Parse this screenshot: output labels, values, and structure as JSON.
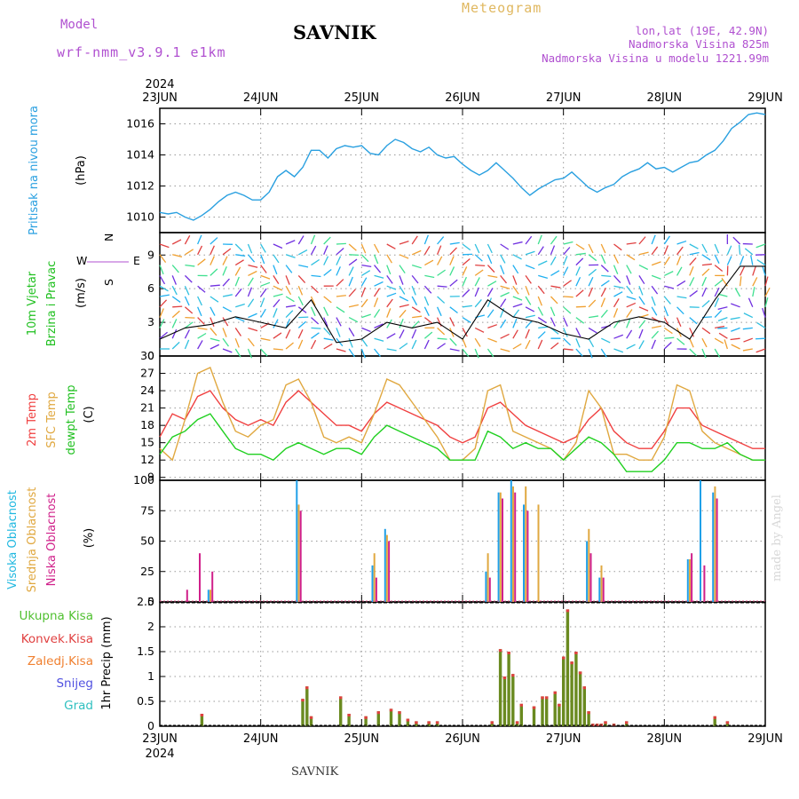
{
  "header": {
    "model_label": "Model",
    "model_name": "wrf-nmm_v3.9.1 e1km",
    "station": "SAVNIK",
    "meteogram": "Meteogram",
    "lonlat": "lon,lat (19E, 42.9N)",
    "elevation": "Nadmorska Visina 825m",
    "elevation_model": "Nadmorska Visina u modelu 1221.99m"
  },
  "footer": {
    "station": "SAVNIK",
    "made_by": "made by Angel"
  },
  "colors": {
    "pressure": "#2aa0e0",
    "temp2m": "#f04040",
    "sfc": "#e0a840",
    "dewpt": "#20d020",
    "cloud_high": "#20a0e8",
    "cloud_mid": "#e0a840",
    "cloud_low": "#d0208a",
    "precip_total": "#50c030",
    "precip_conv": "#e04040",
    "snow": "#5050e0",
    "graupel": "#30c0c0"
  },
  "chart_data": [
    {
      "type": "line",
      "name": "pressure",
      "ylabel_left": "Pritisak na nivou mora",
      "ylabel_unit": "(hPa)",
      "ylim": [
        1009,
        1017
      ],
      "yticks": [
        "1010",
        "1012",
        "1014",
        "1016"
      ],
      "x_start_label_year": "2024",
      "x_tick_labels": [
        "23JUN",
        "24JUN",
        "25JUN",
        "26JUN",
        "27JUN",
        "28JUN",
        "29JUN"
      ],
      "x": [
        0,
        2,
        4,
        6,
        8,
        10,
        12,
        14,
        16,
        18,
        20,
        22,
        24,
        26,
        28,
        30,
        32,
        34,
        36,
        38,
        40,
        42,
        44,
        46,
        48,
        50,
        52,
        54,
        56,
        58,
        60,
        62,
        64,
        66,
        68,
        70,
        72,
        74,
        76,
        78,
        80,
        82,
        84,
        86,
        88,
        90,
        92,
        94,
        96,
        98,
        100,
        102,
        104,
        106,
        108,
        110,
        112,
        114,
        116,
        118,
        120,
        122,
        124,
        126,
        128,
        130,
        132,
        134,
        136,
        138,
        140,
        142,
        144
      ],
      "values": [
        1010.3,
        1010.2,
        1010.3,
        1010.0,
        1009.8,
        1010.1,
        1010.5,
        1011.0,
        1011.4,
        1011.6,
        1011.4,
        1011.1,
        1011.1,
        1011.6,
        1012.6,
        1013.0,
        1012.6,
        1013.2,
        1014.3,
        1014.3,
        1013.8,
        1014.4,
        1014.6,
        1014.5,
        1014.6,
        1014.1,
        1014.0,
        1014.6,
        1015.0,
        1014.8,
        1014.4,
        1014.2,
        1014.5,
        1014.0,
        1013.8,
        1013.9,
        1013.4,
        1013.0,
        1012.7,
        1013.0,
        1013.5,
        1013.0,
        1012.5,
        1011.9,
        1011.4,
        1011.8,
        1012.1,
        1012.4,
        1012.5,
        1012.9,
        1012.4,
        1011.9,
        1011.6,
        1011.9,
        1012.1,
        1012.6,
        1012.9,
        1013.1,
        1013.5,
        1013.1,
        1013.2,
        1012.9,
        1013.2,
        1013.5,
        1013.6,
        1014.0,
        1014.3,
        1014.9,
        1015.7,
        1016.1,
        1016.6,
        1016.7,
        1016.6
      ]
    },
    {
      "type": "scatter",
      "name": "wind",
      "ylabel_left": [
        "10m Vjetar",
        "Brzina i Pravac"
      ],
      "ylabel_unit": "(m/s)",
      "ylim": [
        0,
        11
      ],
      "yticks": [
        "0",
        "3",
        "6",
        "9"
      ],
      "compass": {
        "w": "W",
        "e": "E",
        "n": "N",
        "s": "S"
      },
      "x": [
        0,
        6,
        12,
        18,
        24,
        30,
        36,
        42,
        48,
        54,
        60,
        66,
        72,
        78,
        84,
        90,
        96,
        102,
        108,
        114,
        120,
        126,
        132,
        138,
        144
      ],
      "speed": [
        1.5,
        2.5,
        2.8,
        3.5,
        3.0,
        2.5,
        5.0,
        1.2,
        1.5,
        3.0,
        2.5,
        3.0,
        1.5,
        5.0,
        3.5,
        3.0,
        2.0,
        1.5,
        3.0,
        3.5,
        3.0,
        1.5,
        5.0,
        8.0,
        8.0
      ]
    },
    {
      "type": "line",
      "name": "temperature",
      "ylabel_left": [
        "2m Temp",
        "SFC Temp",
        "dewpt Temp"
      ],
      "ylabel_unit": "(C)",
      "ylim": [
        8.5,
        30
      ],
      "yticks": [
        "9",
        "12",
        "15",
        "18",
        "21",
        "24",
        "27",
        "30"
      ],
      "x": [
        0,
        3,
        6,
        9,
        12,
        15,
        18,
        21,
        24,
        27,
        30,
        33,
        36,
        39,
        42,
        45,
        48,
        51,
        54,
        57,
        60,
        63,
        66,
        69,
        72,
        75,
        78,
        81,
        84,
        87,
        90,
        93,
        96,
        99,
        102,
        105,
        108,
        111,
        114,
        117,
        120,
        123,
        126,
        129,
        132,
        135,
        138,
        141,
        144
      ],
      "series": [
        {
          "name": "2m Temp",
          "values": [
            16,
            20,
            19,
            23,
            24,
            21,
            19,
            18,
            19,
            18,
            22,
            24,
            22,
            20,
            18,
            18,
            17,
            20,
            22,
            21,
            20,
            19,
            18,
            16,
            15,
            16,
            21,
            22,
            20,
            18,
            17,
            16,
            15,
            16,
            19,
            21,
            17,
            15,
            14,
            14,
            17,
            21,
            21,
            18,
            17,
            16,
            15,
            14,
            14
          ]
        },
        {
          "name": "SFC Temp",
          "values": [
            14,
            12,
            19,
            27,
            28,
            22,
            17,
            16,
            18,
            19,
            25,
            26,
            22,
            16,
            15,
            16,
            15,
            20,
            26,
            25,
            22,
            19,
            16,
            12,
            12,
            14,
            24,
            25,
            17,
            16,
            15,
            14,
            12,
            15,
            24,
            21,
            13,
            13,
            12,
            12,
            16,
            25,
            24,
            17,
            15,
            14,
            13,
            12,
            12
          ]
        },
        {
          "name": "dewpt Temp",
          "values": [
            13,
            16,
            17,
            19,
            20,
            17,
            14,
            13,
            13,
            12,
            14,
            15,
            14,
            13,
            14,
            14,
            13,
            16,
            18,
            17,
            16,
            15,
            14,
            12,
            12,
            12,
            17,
            16,
            14,
            15,
            14,
            14,
            12,
            14,
            16,
            15,
            13,
            10,
            10,
            10,
            12,
            15,
            15,
            14,
            14,
            15,
            13,
            12,
            12
          ]
        }
      ]
    },
    {
      "type": "bar",
      "name": "clouds",
      "ylabel_left": [
        "Visoka Oblacnost",
        "Srednja Oblacnost",
        "Niska Oblacnost"
      ],
      "ylabel_unit": "(%)",
      "ylim": [
        0,
        100
      ],
      "yticks": [
        "0",
        "25",
        "50",
        "75",
        "100"
      ],
      "x": [
        0,
        3,
        6,
        9,
        12,
        15,
        18,
        21,
        24,
        27,
        30,
        33,
        36,
        39,
        42,
        45,
        48,
        51,
        54,
        57,
        60,
        63,
        66,
        69,
        72,
        75,
        78,
        81,
        84,
        87,
        90,
        93,
        96,
        99,
        102,
        105,
        108,
        111,
        114,
        117,
        120,
        123,
        126,
        129,
        132,
        135,
        138,
        141,
        144
      ],
      "series": [
        {
          "name": "Visoka Oblacnost",
          "values": [
            0,
            0,
            0,
            0,
            10,
            0,
            0,
            0,
            0,
            0,
            0,
            100,
            0,
            0,
            0,
            0,
            0,
            30,
            60,
            0,
            0,
            0,
            0,
            0,
            0,
            0,
            25,
            90,
            100,
            80,
            0,
            0,
            0,
            0,
            50,
            20,
            0,
            0,
            0,
            0,
            0,
            0,
            35,
            100,
            90,
            0,
            0,
            0,
            0
          ]
        },
        {
          "name": "Srednja Oblacnost",
          "values": [
            0,
            0,
            0,
            0,
            10,
            0,
            0,
            0,
            0,
            0,
            0,
            80,
            0,
            0,
            0,
            0,
            0,
            40,
            55,
            0,
            0,
            0,
            0,
            0,
            0,
            0,
            40,
            90,
            95,
            95,
            80,
            0,
            0,
            0,
            60,
            30,
            0,
            0,
            0,
            0,
            0,
            0,
            35,
            0,
            95,
            0,
            0,
            0,
            0
          ]
        },
        {
          "name": "Niska Oblacnost",
          "values": [
            0,
            0,
            10,
            40,
            25,
            0,
            0,
            0,
            0,
            0,
            0,
            75,
            0,
            0,
            0,
            0,
            0,
            20,
            50,
            0,
            0,
            0,
            0,
            0,
            0,
            0,
            20,
            85,
            90,
            75,
            0,
            0,
            0,
            0,
            40,
            20,
            0,
            0,
            0,
            0,
            0,
            0,
            40,
            30,
            85,
            0,
            0,
            0,
            0
          ]
        }
      ]
    },
    {
      "type": "bar",
      "name": "precipitation",
      "ylabel_left": "1hr Precip (mm)",
      "legend": [
        "Ukupna Kisa",
        "Konvek.Kisa",
        "Zaledj.Kisa",
        "Snijeg",
        "Grad"
      ],
      "ylim": [
        0,
        2.5
      ],
      "yticks": [
        "0",
        "0.5",
        "1",
        "1.5",
        "2",
        "2.5"
      ],
      "x": [
        10,
        34,
        35,
        36,
        43,
        45,
        49,
        52,
        55,
        57,
        59,
        61,
        64,
        66,
        79,
        81,
        82,
        83,
        84,
        85,
        86,
        89,
        91,
        92,
        94,
        95,
        96,
        97,
        98,
        99,
        100,
        101,
        102,
        103,
        104,
        105,
        106,
        108,
        111,
        132,
        135
      ],
      "values": [
        0.25,
        0.55,
        0.8,
        0.2,
        0.6,
        0.25,
        0.2,
        0.3,
        0.35,
        0.3,
        0.15,
        0.1,
        0.1,
        0.1,
        0.1,
        1.55,
        1.0,
        1.5,
        1.05,
        0.1,
        0.45,
        0.4,
        0.6,
        0.6,
        0.7,
        0.45,
        1.4,
        2.35,
        1.3,
        1.5,
        1.1,
        0.8,
        0.3,
        0.05,
        0.05,
        0.05,
        0.1,
        0.05,
        0.1,
        0.2,
        0.1
      ]
    }
  ]
}
